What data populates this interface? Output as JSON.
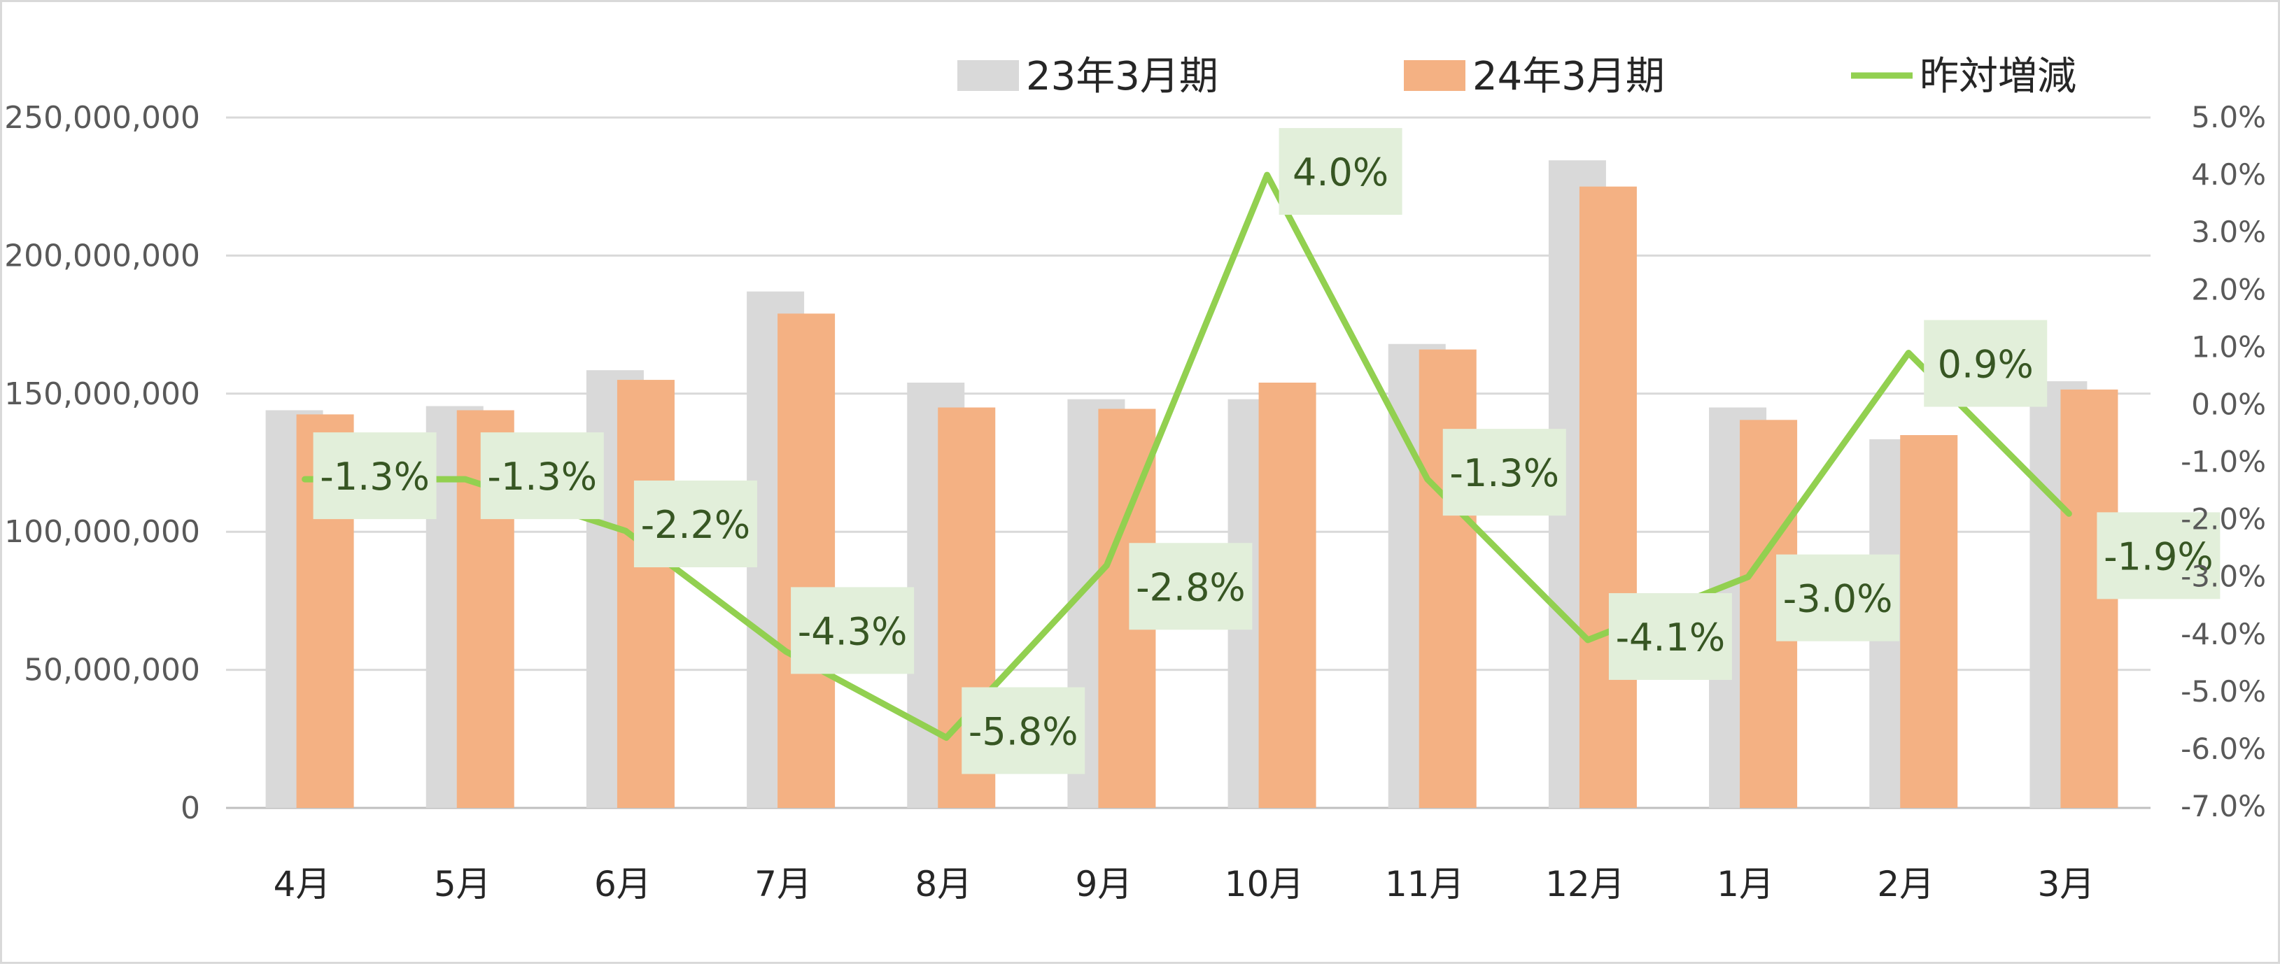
{
  "chart_data": {
    "type": "bar",
    "combo": "bar+line (secondary axis)",
    "categories": [
      "4月",
      "5月",
      "6月",
      "7月",
      "8月",
      "9月",
      "10月",
      "11月",
      "12月",
      "1月",
      "2月",
      "3月"
    ],
    "series": [
      {
        "name": "23年3月期",
        "type": "bar",
        "axis": "left",
        "color": "#d9d9d9",
        "values": [
          144000000,
          145500000,
          158500000,
          187000000,
          154000000,
          148000000,
          148000000,
          168000000,
          234500000,
          145000000,
          133500000,
          154500000
        ]
      },
      {
        "name": "24年3月期",
        "type": "bar",
        "axis": "left",
        "color": "#f4b183",
        "values": [
          142500000,
          144000000,
          155000000,
          179000000,
          145000000,
          144500000,
          154000000,
          166000000,
          225000000,
          140500000,
          135000000,
          151500000
        ]
      },
      {
        "name": "昨対増減",
        "type": "line",
        "axis": "right",
        "color": "#92d050",
        "values": [
          -1.3,
          -1.3,
          -2.2,
          -4.3,
          -5.8,
          -2.8,
          4.0,
          -1.3,
          -4.1,
          -3.0,
          0.9,
          -1.9
        ],
        "labels": [
          "-1.3%",
          "-1.3%",
          "-2.2%",
          "-4.3%",
          "-5.8%",
          "-2.8%",
          "4.0%",
          "-1.3%",
          "-4.1%",
          "-3.0%",
          "0.9%",
          "-1.9%"
        ],
        "label_color": "#375623",
        "label_background": "#e2efda"
      }
    ],
    "y_left": {
      "lim": [
        0,
        250000000
      ],
      "ticks": [
        0,
        50000000,
        100000000,
        150000000,
        200000000,
        250000000
      ],
      "tick_labels": [
        "0",
        "50,000,000",
        "100,000,000",
        "150,000,000",
        "200,000,000",
        "250,000,000"
      ]
    },
    "y_right": {
      "lim": [
        -7.0,
        5.0
      ],
      "ticks": [
        -7,
        -6,
        -5,
        -4,
        -3,
        -2,
        -1,
        0,
        1,
        2,
        3,
        4,
        5
      ],
      "tick_labels": [
        "-7.0%",
        "-6.0%",
        "-5.0%",
        "-4.0%",
        "-3.0%",
        "-2.0%",
        "-1.0%",
        "0.0%",
        "1.0%",
        "2.0%",
        "3.0%",
        "4.0%",
        "5.0%"
      ]
    },
    "title": "",
    "xlabel": "",
    "ylabel": "",
    "grid": true,
    "legend": {
      "position": "top",
      "entries": [
        "23年3月期",
        "24年3月期",
        "昨対増減"
      ]
    }
  }
}
